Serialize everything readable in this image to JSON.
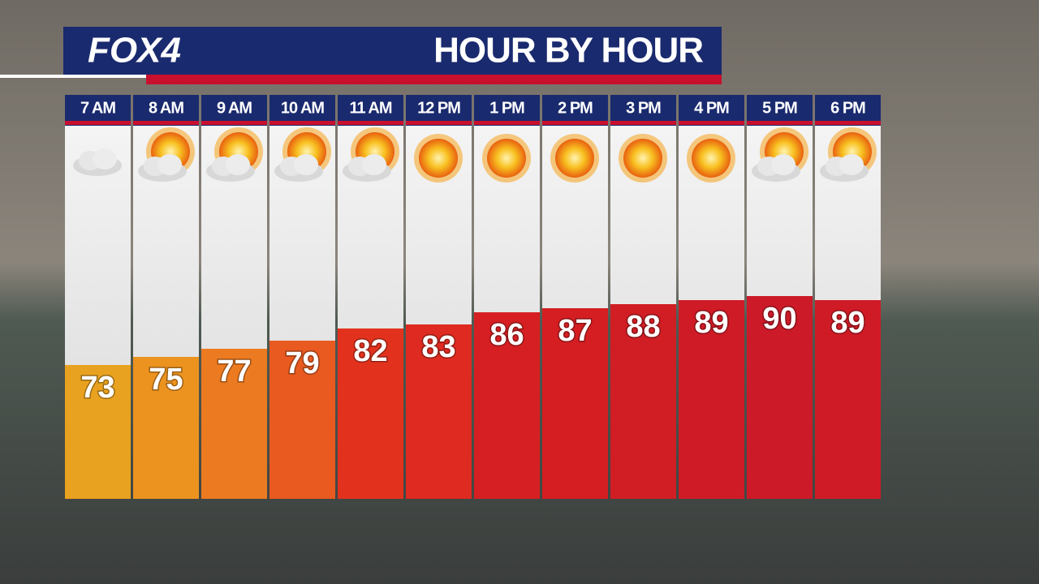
{
  "brand": "FOX4",
  "chart_data": {
    "type": "bar",
    "title": "HOUR BY HOUR",
    "categories": [
      "7 AM",
      "8 AM",
      "9 AM",
      "10 AM",
      "11 AM",
      "12 PM",
      "1 PM",
      "2 PM",
      "3 PM",
      "4 PM",
      "5 PM",
      "6 PM"
    ],
    "values": [
      73,
      75,
      77,
      79,
      82,
      83,
      86,
      87,
      88,
      89,
      90,
      89
    ],
    "colors": [
      "#e9a21f",
      "#ec931f",
      "#ec7a20",
      "#e85a1f",
      "#e2321e",
      "#de2a20",
      "#d61f22",
      "#d41e22",
      "#d11d24",
      "#cf1b26",
      "#cc1a28",
      "#cf1b26"
    ],
    "ylim": [
      40,
      132
    ]
  }
}
